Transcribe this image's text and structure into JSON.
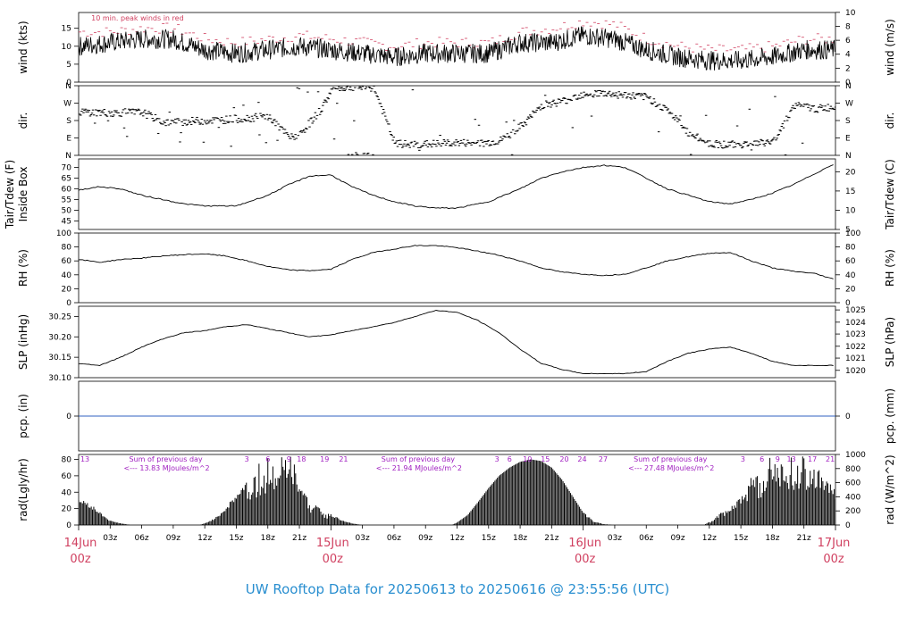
{
  "title": "UW Rooftop Data for 20250613  to  20250616 @ 23:55:56  (UTC)",
  "colors": {
    "series": "#000000",
    "peak": "#d04060",
    "precip": "#3060c0",
    "annotation": "#a020c0",
    "day_label": "#d04060",
    "title": "#2a8fd0"
  },
  "chart_data": [
    {
      "id": "wind",
      "type": "line",
      "ylabel_left": "wind (kts)",
      "ylabel_right": "wind (m/s)",
      "ylim": [
        0,
        19.4
      ],
      "yticks_left": [
        0,
        5,
        10,
        15
      ],
      "yticks_right": {
        "labels": [
          "0",
          "2",
          "4",
          "6",
          "8",
          "10"
        ],
        "values": [
          0,
          3.89,
          7.78,
          11.66,
          15.55,
          19.44
        ]
      },
      "annotation": "10 min. peak winds in red",
      "series": [
        {
          "x": [
            0,
            3,
            6,
            9,
            12,
            15,
            18,
            21,
            24,
            27,
            30,
            33,
            36,
            39,
            42,
            45,
            48,
            51,
            54,
            57,
            60,
            63,
            66,
            69,
            72
          ],
          "y": [
            10,
            11,
            12,
            12,
            9,
            8,
            9,
            10,
            9,
            8,
            7,
            8,
            8,
            8,
            11,
            11,
            13,
            12,
            9,
            7,
            6,
            6,
            7,
            9,
            9
          ]
        },
        {
          "name": "10 min. peak winds",
          "x": [
            0,
            3,
            6,
            9,
            12,
            15,
            18,
            21,
            24,
            27,
            30,
            33,
            36,
            39,
            42,
            45,
            48,
            51,
            54,
            57,
            60,
            63,
            66,
            69,
            72
          ],
          "y": [
            14,
            14,
            15,
            15,
            12,
            11,
            12,
            13,
            12,
            11,
            10,
            11,
            11,
            11,
            14,
            15,
            17,
            16,
            12,
            10,
            9,
            9,
            10,
            12,
            12
          ]
        }
      ]
    },
    {
      "id": "dir",
      "type": "scatter",
      "ylabel_left": "dir.",
      "ylabel_right": "dir.",
      "ylim": [
        0,
        360
      ],
      "ytick_values": [
        0,
        90,
        180,
        270,
        360
      ],
      "ytick_labels": [
        "N",
        "E",
        "S",
        "W",
        "N"
      ],
      "series": [
        {
          "x": [
            0,
            3,
            6,
            8,
            10,
            14,
            18,
            20,
            21,
            23,
            24,
            26,
            28,
            30,
            32,
            34,
            36,
            38,
            40,
            42,
            44,
            46,
            48,
            50,
            52,
            54,
            56,
            58,
            60,
            62,
            64,
            66,
            68,
            70,
            72
          ],
          "y": [
            225,
            220,
            222,
            170,
            175,
            185,
            200,
            90,
            110,
            240,
            340,
            355,
            350,
            60,
            55,
            60,
            65,
            60,
            75,
            150,
            260,
            280,
            320,
            320,
            310,
            300,
            230,
            110,
            60,
            55,
            60,
            70,
            260,
            240,
            250
          ]
        }
      ]
    },
    {
      "id": "temp",
      "type": "line",
      "ylabel_left": "Tair/Tdew (F)",
      "ylabel_left2": "Inside Box",
      "ylabel_right": "Tair/Tdew (C)",
      "ylim": [
        41,
        74
      ],
      "yticks_left": [
        45,
        50,
        55,
        60,
        65,
        70
      ],
      "yticks_right": {
        "labels": [
          "5",
          "10",
          "15",
          "20"
        ],
        "values": [
          41,
          50,
          59,
          68
        ]
      },
      "series": [
        {
          "x": [
            0,
            2,
            4,
            6,
            8,
            10,
            12,
            15,
            18,
            20,
            22,
            24,
            26,
            28,
            30,
            32,
            34,
            36,
            39,
            42,
            44,
            46,
            48,
            50,
            52,
            54,
            56,
            58,
            60,
            62,
            64,
            66,
            68,
            70,
            72
          ],
          "y": [
            59.5,
            61,
            60,
            57,
            55,
            53,
            52,
            52,
            57,
            62,
            66,
            66.5,
            61,
            57,
            54,
            52,
            51,
            51,
            54,
            60,
            65,
            68,
            70,
            71,
            70,
            65,
            60,
            57,
            54,
            53,
            55,
            58,
            62,
            67,
            72
          ]
        }
      ]
    },
    {
      "id": "rh",
      "type": "line",
      "ylabel_left": "RH (%)",
      "ylabel_right": "RH (%)",
      "ylim": [
        0,
        100
      ],
      "yticks_left": [
        0,
        20,
        40,
        60,
        80,
        100
      ],
      "yticks_right": {
        "labels": [
          "0",
          "20",
          "40",
          "60",
          "80",
          "100"
        ],
        "values": [
          0,
          20,
          40,
          60,
          80,
          100
        ]
      },
      "series": [
        {
          "x": [
            0,
            2,
            4,
            6,
            8,
            10,
            12,
            14,
            16,
            18,
            20,
            22,
            24,
            26,
            28,
            30,
            32,
            34,
            36,
            38,
            40,
            42,
            44,
            46,
            48,
            50,
            52,
            54,
            56,
            58,
            60,
            62,
            64,
            66,
            68,
            70,
            72
          ],
          "y": [
            62,
            58,
            62,
            64,
            67,
            69,
            70,
            67,
            60,
            52,
            47,
            46,
            48,
            62,
            72,
            77,
            82,
            82,
            79,
            74,
            68,
            60,
            50,
            44,
            41,
            39,
            41,
            50,
            60,
            66,
            71,
            72,
            60,
            50,
            45,
            42,
            33
          ]
        }
      ]
    },
    {
      "id": "slp",
      "type": "line",
      "ylabel_left": "SLP (inHg)",
      "ylabel_right": "SLP (hPa)",
      "ylim": [
        30.1,
        30.275
      ],
      "yticks_left": [
        30.1,
        30.15,
        30.2,
        30.25
      ],
      "ytick_labels_left": [
        "30.10",
        "30.15",
        "30.20",
        "30.25"
      ],
      "yticks_right": {
        "labels": [
          "1020",
          "1021",
          "1022",
          "1023",
          "1024",
          "1025"
        ],
        "values": [
          30.118,
          30.148,
          30.177,
          30.207,
          30.236,
          30.266
        ]
      },
      "series": [
        {
          "x": [
            0,
            2,
            4,
            6,
            8,
            10,
            12,
            14,
            16,
            18,
            20,
            22,
            24,
            26,
            28,
            30,
            32,
            34,
            36,
            38,
            40,
            42,
            44,
            46,
            48,
            50,
            52,
            54,
            56,
            58,
            60,
            62,
            64,
            66,
            68,
            70,
            72
          ],
          "y": [
            30.135,
            30.13,
            30.15,
            30.175,
            30.195,
            30.21,
            30.215,
            30.225,
            30.23,
            30.22,
            30.21,
            30.2,
            30.205,
            30.215,
            30.225,
            30.235,
            30.25,
            30.265,
            30.26,
            30.24,
            30.21,
            30.17,
            30.135,
            30.12,
            30.11,
            30.11,
            30.11,
            30.115,
            30.14,
            30.16,
            30.17,
            30.175,
            30.16,
            30.14,
            30.13,
            30.13,
            30.13
          ]
        }
      ]
    },
    {
      "id": "pcp",
      "type": "line",
      "ylabel_left": "pcp. (in)",
      "ylabel_right": "pcp. (mm)",
      "ylim": [
        -0.5,
        0.5
      ],
      "yticks_left": [
        0
      ],
      "yticks_right": {
        "labels": [
          "0"
        ],
        "values": [
          0
        ]
      },
      "series": [
        {
          "x": [
            0,
            72
          ],
          "y": [
            0,
            0
          ]
        }
      ]
    },
    {
      "id": "rad",
      "type": "area",
      "ylabel_left": "rad(Lgly/hr)",
      "ylabel_right": "rad (W/m^2)",
      "ylim": [
        0,
        86
      ],
      "yticks_left": [
        0,
        20,
        40,
        60,
        80
      ],
      "yticks_right": {
        "labels": [
          "0",
          "200",
          "400",
          "600",
          "800",
          "1000"
        ],
        "values": [
          0,
          17.2,
          34.4,
          51.6,
          68.8,
          86
        ]
      },
      "annotations": [
        {
          "text": "Sum of previous day",
          "x": 4.8,
          "row": 1
        },
        {
          "text": "<--- 13.83 MJoules/m^2",
          "x": 4.8,
          "row": 2
        },
        {
          "text": "Sum of previous day",
          "x": 28.8,
          "row": 1
        },
        {
          "text": "<--- 21.94 MJoules/m^2",
          "x": 28.8,
          "row": 2
        },
        {
          "text": "Sum of previous day",
          "x": 52.8,
          "row": 1
        },
        {
          "text": "<--- 27.48 MJoules/m^2",
          "x": 52.8,
          "row": 2
        }
      ],
      "hour_marks": [
        {
          "text": "13",
          "x": 0.6
        },
        {
          "text": "3",
          "x": 16
        },
        {
          "text": "6",
          "x": 18
        },
        {
          "text": "9",
          "x": 20
        },
        {
          "text": "18",
          "x": 21.2
        },
        {
          "text": "19",
          "x": 23.4
        },
        {
          "text": "21",
          "x": 25.2
        },
        {
          "text": "3",
          "x": 39.8
        },
        {
          "text": "6",
          "x": 41
        },
        {
          "text": "10",
          "x": 42.7
        },
        {
          "text": "15",
          "x": 44.4
        },
        {
          "text": "20",
          "x": 46.2
        },
        {
          "text": "24",
          "x": 47.9
        },
        {
          "text": "27",
          "x": 49.9
        },
        {
          "text": "3",
          "x": 63.2
        },
        {
          "text": "6",
          "x": 65
        },
        {
          "text": "9",
          "x": 66.5
        },
        {
          "text": "13",
          "x": 67.8
        },
        {
          "text": "17",
          "x": 69.8
        },
        {
          "text": "21",
          "x": 71.5
        }
      ],
      "series": [
        {
          "x": [
            0,
            1,
            2,
            3,
            4,
            5,
            11.5,
            12,
            13,
            14,
            15,
            16,
            17,
            18,
            19,
            20,
            21,
            22,
            23,
            24,
            25,
            26,
            27,
            28,
            35.5,
            36,
            37,
            38,
            39,
            40,
            41,
            42,
            43,
            44,
            45,
            46,
            47,
            48,
            49,
            50,
            51,
            52,
            59.5,
            60,
            61,
            62,
            63,
            64,
            65,
            66,
            67,
            68,
            69,
            70,
            71,
            72
          ],
          "y": [
            30,
            25,
            15,
            5,
            2,
            0,
            0,
            2,
            8,
            20,
            35,
            50,
            65,
            78,
            82,
            80,
            60,
            25,
            22,
            12,
            6,
            2,
            0,
            0,
            0,
            3,
            12,
            28,
            45,
            60,
            70,
            77,
            80,
            78,
            70,
            55,
            35,
            15,
            4,
            1,
            0,
            0,
            0,
            4,
            12,
            25,
            38,
            50,
            60,
            75,
            80,
            70,
            75,
            65,
            55,
            50
          ]
        }
      ]
    }
  ],
  "x_axis": {
    "range_hours": [
      0,
      72
    ],
    "hour_ticks": [
      {
        "label": "03z",
        "h": 3
      },
      {
        "label": "06z",
        "h": 6
      },
      {
        "label": "09z",
        "h": 9
      },
      {
        "label": "12z",
        "h": 12
      },
      {
        "label": "15z",
        "h": 15
      },
      {
        "label": "18z",
        "h": 18
      },
      {
        "label": "21z",
        "h": 21
      },
      {
        "label": "03z",
        "h": 27
      },
      {
        "label": "06z",
        "h": 30
      },
      {
        "label": "09z",
        "h": 33
      },
      {
        "label": "12z",
        "h": 36
      },
      {
        "label": "15z",
        "h": 39
      },
      {
        "label": "18z",
        "h": 42
      },
      {
        "label": "21z",
        "h": 45
      },
      {
        "label": "03z",
        "h": 51
      },
      {
        "label": "06z",
        "h": 54
      },
      {
        "label": "09z",
        "h": 57
      },
      {
        "label": "12z",
        "h": 60
      },
      {
        "label": "15z",
        "h": 63
      },
      {
        "label": "18z",
        "h": 66
      },
      {
        "label": "21z",
        "h": 69
      }
    ],
    "day_ticks": [
      {
        "label": "14Jun",
        "sub": "00z",
        "h": 0
      },
      {
        "label": "15Jun",
        "sub": "00z",
        "h": 24
      },
      {
        "label": "16Jun",
        "sub": "00z",
        "h": 48
      },
      {
        "label": "17Jun",
        "sub": "00z",
        "h": 72
      }
    ]
  }
}
